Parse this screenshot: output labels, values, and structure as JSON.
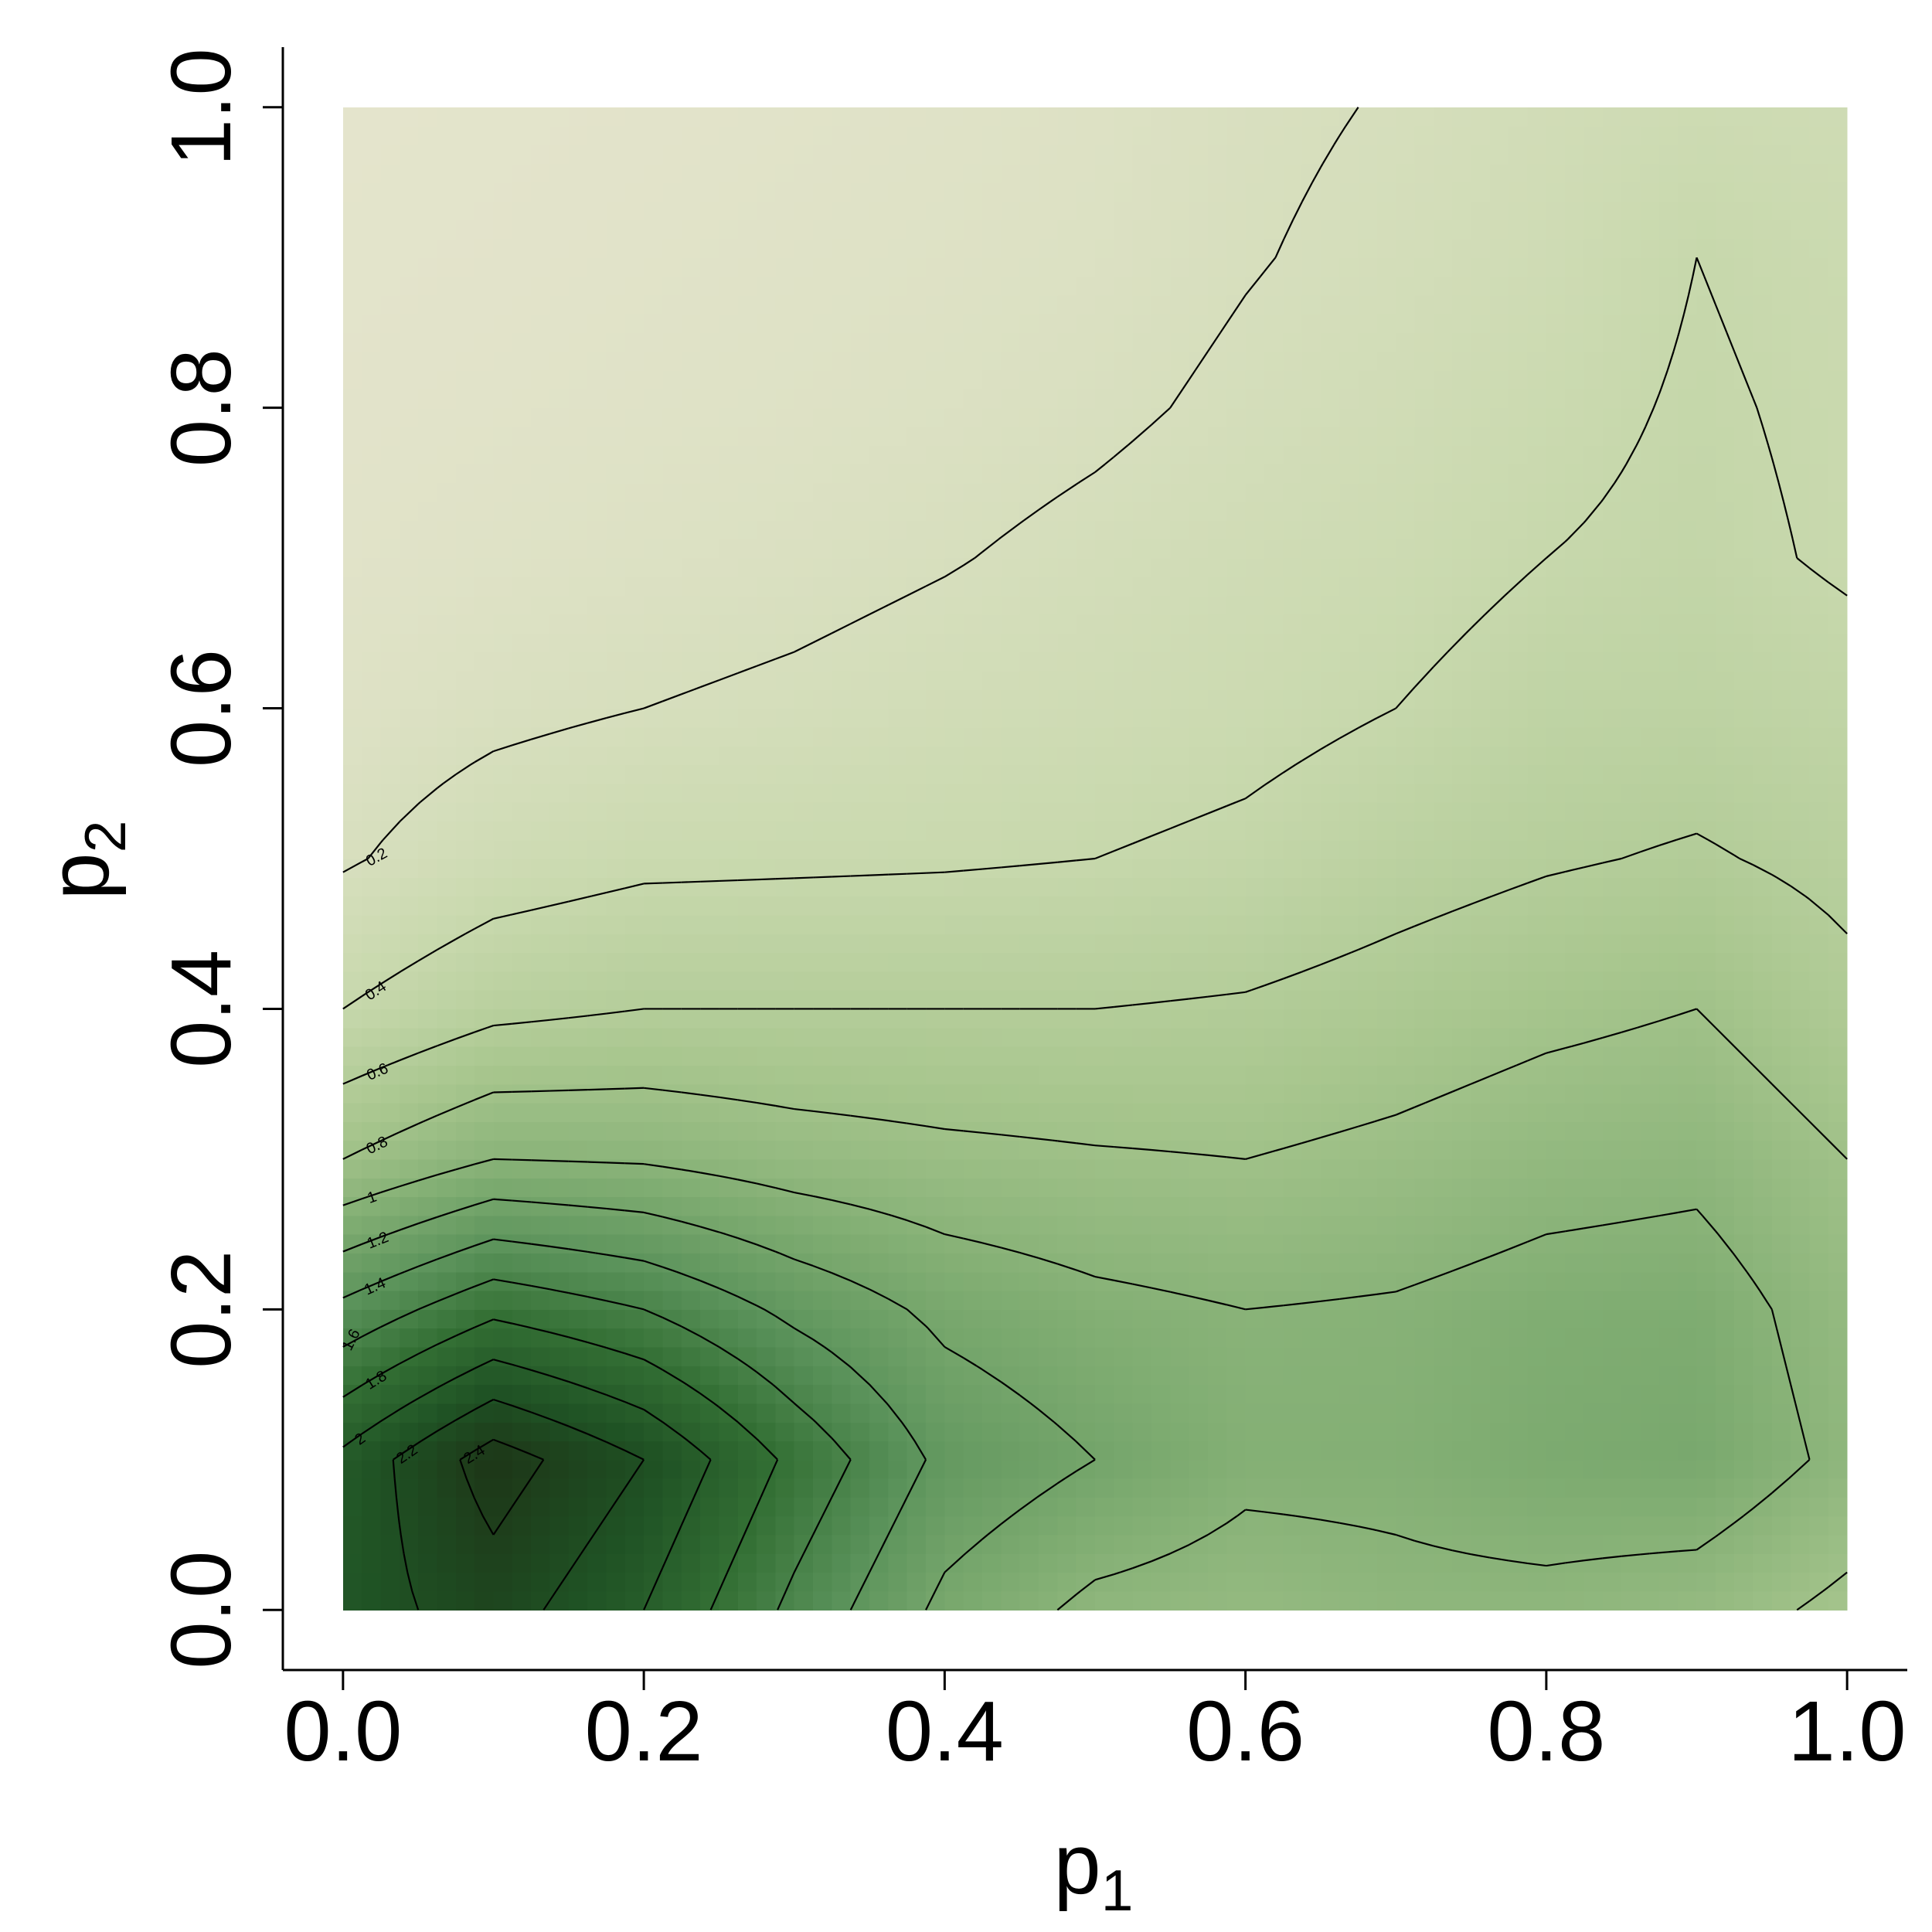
{
  "chart_data": {
    "type": "contour",
    "x_label": {
      "base": "p",
      "sub": "1"
    },
    "y_label": {
      "base": "p",
      "sub": "2"
    },
    "x": [
      0,
      0.1,
      0.2,
      0.3,
      0.4,
      0.5,
      0.6,
      0.7,
      0.8,
      0.9,
      1
    ],
    "y": [
      0,
      0.1,
      0.2,
      0.3,
      0.4,
      0.5,
      0.6,
      0.7,
      0.8,
      0.9,
      1
    ],
    "z": [
      [
        2.1,
        2.3,
        2.0,
        1.55,
        1.15,
        0.95,
        0.9,
        0.95,
        0.95,
        0.9,
        0.75
      ],
      [
        2.05,
        2.5,
        2.2,
        1.75,
        1.35,
        1.2,
        1.05,
        1.05,
        1.12,
        1.15,
        0.95
      ],
      [
        1.45,
        1.75,
        1.6,
        1.35,
        1.15,
        1.05,
        1.0,
        1.02,
        1.08,
        1.1,
        0.9
      ],
      [
        0.8,
        1.0,
        0.98,
        0.9,
        0.85,
        0.82,
        0.8,
        0.85,
        0.92,
        0.95,
        0.8
      ],
      [
        0.4,
        0.55,
        0.6,
        0.6,
        0.6,
        0.6,
        0.62,
        0.68,
        0.75,
        0.8,
        0.65
      ],
      [
        0.18,
        0.3,
        0.36,
        0.37,
        0.38,
        0.4,
        0.44,
        0.52,
        0.58,
        0.62,
        0.55
      ],
      [
        0.1,
        0.16,
        0.2,
        0.23,
        0.27,
        0.3,
        0.34,
        0.4,
        0.48,
        0.5,
        0.46
      ],
      [
        0.06,
        0.09,
        0.12,
        0.15,
        0.19,
        0.24,
        0.29,
        0.33,
        0.4,
        0.44,
        0.38
      ],
      [
        0.04,
        0.06,
        0.08,
        0.1,
        0.13,
        0.17,
        0.23,
        0.28,
        0.35,
        0.42,
        0.37
      ],
      [
        0.03,
        0.04,
        0.06,
        0.08,
        0.1,
        0.13,
        0.19,
        0.24,
        0.3,
        0.4,
        0.35
      ],
      [
        0.02,
        0.03,
        0.04,
        0.06,
        0.08,
        0.11,
        0.17,
        0.21,
        0.27,
        0.32,
        0.3
      ]
    ],
    "levels": [
      0.2,
      0.4,
      0.6,
      0.8,
      1,
      1.2,
      1.4,
      1.6,
      1.8,
      2,
      2.2,
      2.4
    ],
    "colors": [
      "#e4e4cc",
      "#c9d9ae",
      "#a8c68e",
      "#80ad72",
      "#5a925a",
      "#336f34",
      "#1f5224",
      "#1d3517"
    ],
    "line_color": "#000000",
    "xlim": [
      -0.04,
      1.04
    ],
    "ylim": [
      -0.04,
      1.04
    ],
    "xticks": [
      {
        "value": 0,
        "label": "0.0"
      },
      0.2,
      0.4,
      0.6,
      0.8,
      {
        "value": 1,
        "label": "1.0"
      }
    ],
    "yticks": [
      {
        "value": 0,
        "label": "0.0"
      },
      0.2,
      0.4,
      0.6,
      0.8,
      {
        "value": 1,
        "label": "1.0"
      }
    ]
  }
}
